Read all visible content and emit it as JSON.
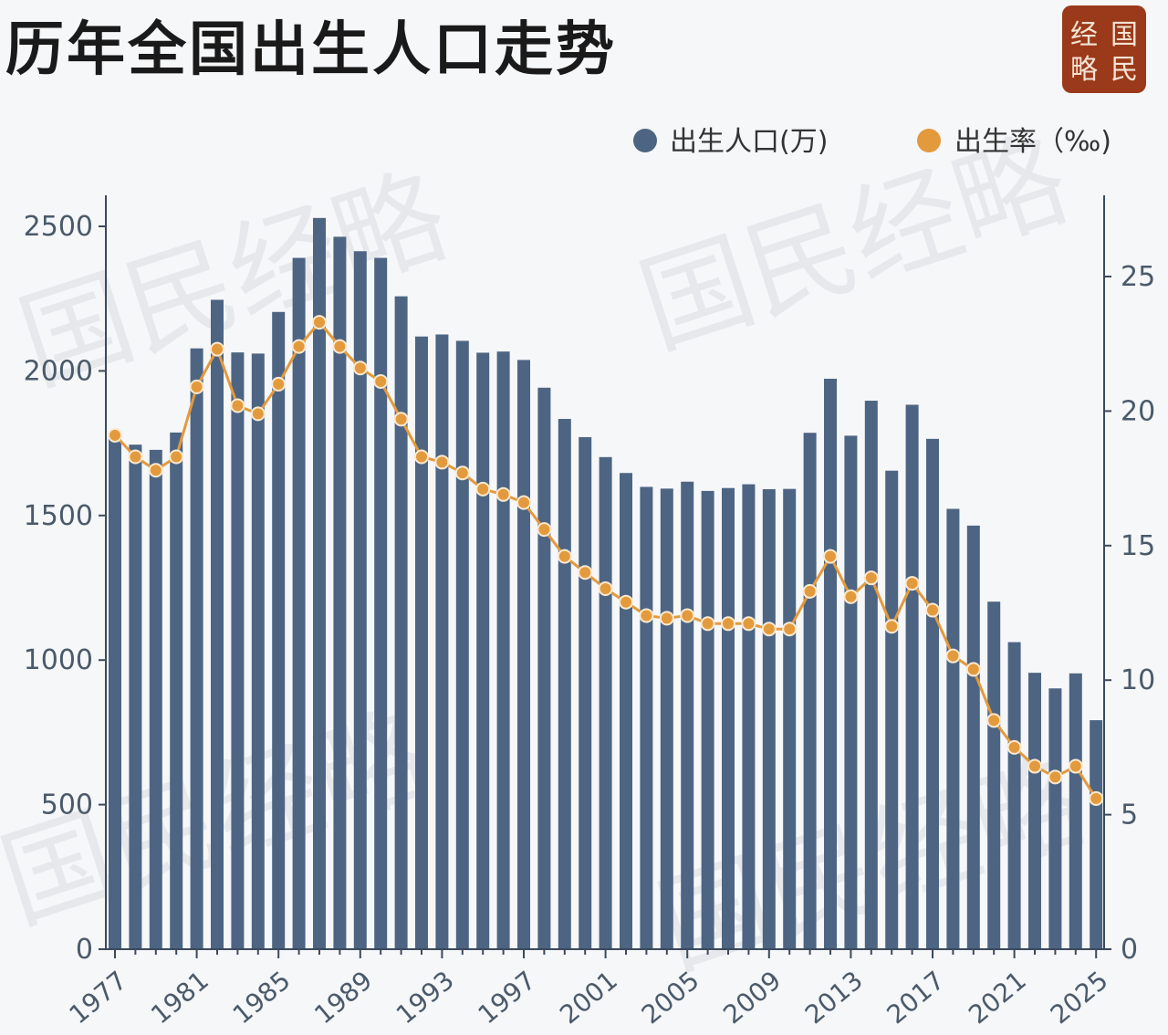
{
  "header": {
    "title": "历年全国出生人口走势",
    "seal_chars": [
      "经",
      "国",
      "略",
      "民"
    ]
  },
  "colors": {
    "bar": "#4d6583",
    "line": "#e39a3d",
    "seal": "#9b3a1a",
    "background": "#f6f7f9"
  },
  "chart_data": {
    "type": "bar",
    "title": "历年全国出生人口走势",
    "legend": {
      "placement": "top-right",
      "bar_label": "出生人口(万)",
      "line_label": "出生率（‰)"
    },
    "x": [
      1977,
      1978,
      1979,
      1980,
      1981,
      1982,
      1983,
      1984,
      1985,
      1986,
      1987,
      1988,
      1989,
      1990,
      1991,
      1992,
      1993,
      1994,
      1995,
      1996,
      1997,
      1998,
      1999,
      2000,
      2001,
      2002,
      2003,
      2004,
      2005,
      2006,
      2007,
      2008,
      2009,
      2010,
      2011,
      2012,
      2013,
      2014,
      2015,
      2016,
      2017,
      2018,
      2019,
      2020,
      2021,
      2022,
      2023,
      2024,
      2025
    ],
    "x_tick_labels": [
      "1977",
      "1981",
      "1985",
      "1989",
      "1993",
      "1997",
      "2001",
      "2005",
      "2009",
      "2013",
      "2017",
      "2021",
      "2025"
    ],
    "series": [
      {
        "name": "出生人口(万)",
        "type": "bar",
        "axis": "left",
        "values": [
          1786,
          1745,
          1727,
          1787,
          2078,
          2246,
          2064,
          2060,
          2204,
          2391,
          2529,
          2464,
          2414,
          2391,
          2258,
          2119,
          2126,
          2104,
          2063,
          2067,
          2038,
          1942,
          1834,
          1771,
          1702,
          1647,
          1599,
          1593,
          1617,
          1585,
          1595,
          1608,
          1591,
          1592,
          1786,
          1973,
          1776,
          1897,
          1655,
          1883,
          1765,
          1523,
          1465,
          1202,
          1062,
          956,
          902,
          954,
          792
        ]
      },
      {
        "name": "出生率（‰)",
        "type": "line",
        "axis": "right",
        "values": [
          19.1,
          18.3,
          17.8,
          18.3,
          20.9,
          22.3,
          20.2,
          19.9,
          21.0,
          22.4,
          23.3,
          22.4,
          21.6,
          21.1,
          19.7,
          18.3,
          18.1,
          17.7,
          17.1,
          16.9,
          16.6,
          15.6,
          14.6,
          14.0,
          13.4,
          12.9,
          12.4,
          12.3,
          12.4,
          12.1,
          12.1,
          12.1,
          11.9,
          11.9,
          13.3,
          14.6,
          13.1,
          13.8,
          12.0,
          13.6,
          12.6,
          10.9,
          10.4,
          8.5,
          7.5,
          6.8,
          6.4,
          6.8,
          5.6
        ]
      }
    ],
    "y_left": {
      "ylim": [
        0,
        2600
      ],
      "ticks": [
        0,
        500,
        1000,
        1500,
        2000,
        2500
      ]
    },
    "y_right": {
      "ylim": [
        0,
        28
      ],
      "ticks": [
        0,
        5,
        10,
        15,
        20,
        25
      ]
    },
    "grid": false
  },
  "watermark": "国民经略"
}
